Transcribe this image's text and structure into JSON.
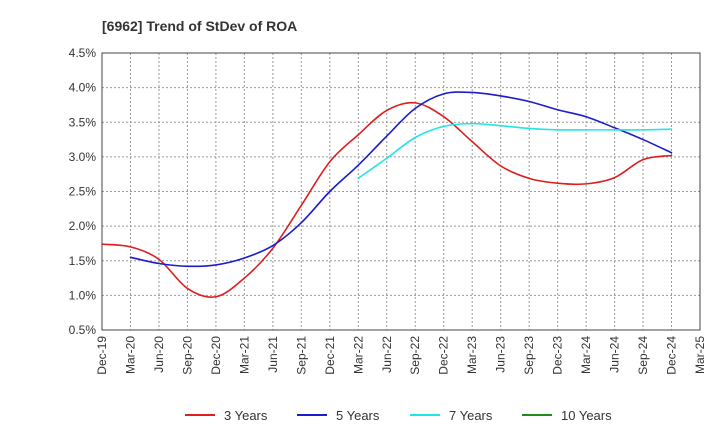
{
  "chart_data": {
    "type": "line",
    "title": "[6962]  Trend of StDev of ROA",
    "xlabel": "",
    "ylabel": "",
    "x_ticks": [
      "Dec-19",
      "Mar-20",
      "Jun-20",
      "Sep-20",
      "Dec-20",
      "Mar-21",
      "Jun-21",
      "Sep-21",
      "Dec-21",
      "Mar-22",
      "Jun-22",
      "Sep-22",
      "Dec-22",
      "Mar-23",
      "Jun-23",
      "Sep-23",
      "Dec-23",
      "Mar-24",
      "Jun-24",
      "Sep-24",
      "Dec-24",
      "Mar-25"
    ],
    "y_ticks": [
      "0.5%",
      "1.0%",
      "1.5%",
      "2.0%",
      "2.5%",
      "3.0%",
      "3.5%",
      "4.0%",
      "4.5%"
    ],
    "ylim": [
      0.5,
      4.5
    ],
    "y_unit": "%",
    "grid": true,
    "legend_position": "bottom",
    "series": [
      {
        "name": "3 Years",
        "color": "#dd1f1f",
        "x": [
          "Dec-19",
          "Mar-20",
          "Jun-20",
          "Sep-20",
          "Dec-20",
          "Mar-21",
          "Jun-21",
          "Sep-21",
          "Dec-21",
          "Mar-22",
          "Jun-22",
          "Sep-22",
          "Dec-22",
          "Mar-23",
          "Jun-23",
          "Sep-23",
          "Dec-23",
          "Mar-24",
          "Jun-24",
          "Sep-24",
          "Dec-24"
        ],
        "values": [
          1.74,
          1.7,
          1.52,
          1.1,
          0.98,
          1.25,
          1.68,
          2.3,
          2.93,
          3.32,
          3.67,
          3.78,
          3.58,
          3.22,
          2.87,
          2.69,
          2.62,
          2.61,
          2.7,
          2.96,
          3.02
        ]
      },
      {
        "name": "5 Years",
        "color": "#1c1ccc",
        "x": [
          "Mar-20",
          "Jun-20",
          "Sep-20",
          "Dec-20",
          "Mar-21",
          "Jun-21",
          "Sep-21",
          "Dec-21",
          "Mar-22",
          "Jun-22",
          "Sep-22",
          "Dec-22",
          "Mar-23",
          "Jun-23",
          "Sep-23",
          "Dec-23",
          "Mar-24",
          "Jun-24",
          "Sep-24",
          "Dec-24"
        ],
        "values": [
          1.55,
          1.46,
          1.42,
          1.44,
          1.54,
          1.72,
          2.05,
          2.5,
          2.88,
          3.3,
          3.7,
          3.91,
          3.93,
          3.88,
          3.8,
          3.68,
          3.58,
          3.42,
          3.25,
          3.06
        ]
      },
      {
        "name": "7 Years",
        "color": "#22e5e5",
        "x": [
          "Mar-22",
          "Jun-22",
          "Sep-22",
          "Dec-22",
          "Mar-23",
          "Jun-23",
          "Sep-23",
          "Dec-23",
          "Mar-24",
          "Jun-24",
          "Sep-24",
          "Dec-24"
        ],
        "values": [
          2.69,
          2.98,
          3.28,
          3.44,
          3.48,
          3.45,
          3.41,
          3.39,
          3.39,
          3.39,
          3.39,
          3.4
        ]
      },
      {
        "name": "10 Years",
        "color": "#1e8c1e",
        "x": [],
        "values": []
      }
    ]
  }
}
